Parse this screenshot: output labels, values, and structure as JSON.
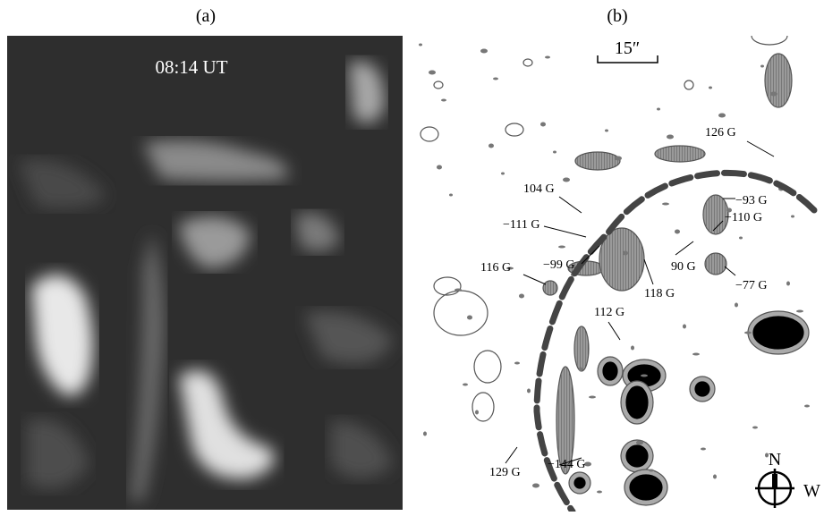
{
  "panels": [
    {
      "label": "(a)",
      "time": "08:14 UT"
    },
    {
      "label": "(b)",
      "scale": "15″",
      "field_labels": [
        "126 G",
        "104 G",
        "−93 G",
        "−111 G",
        "−110 G",
        "−99 G",
        "90 G",
        "116 G",
        "118 G",
        "−77 G",
        "112 G",
        "129 G",
        "−144 G"
      ],
      "compass": [
        "N",
        "W"
      ]
    }
  ]
}
